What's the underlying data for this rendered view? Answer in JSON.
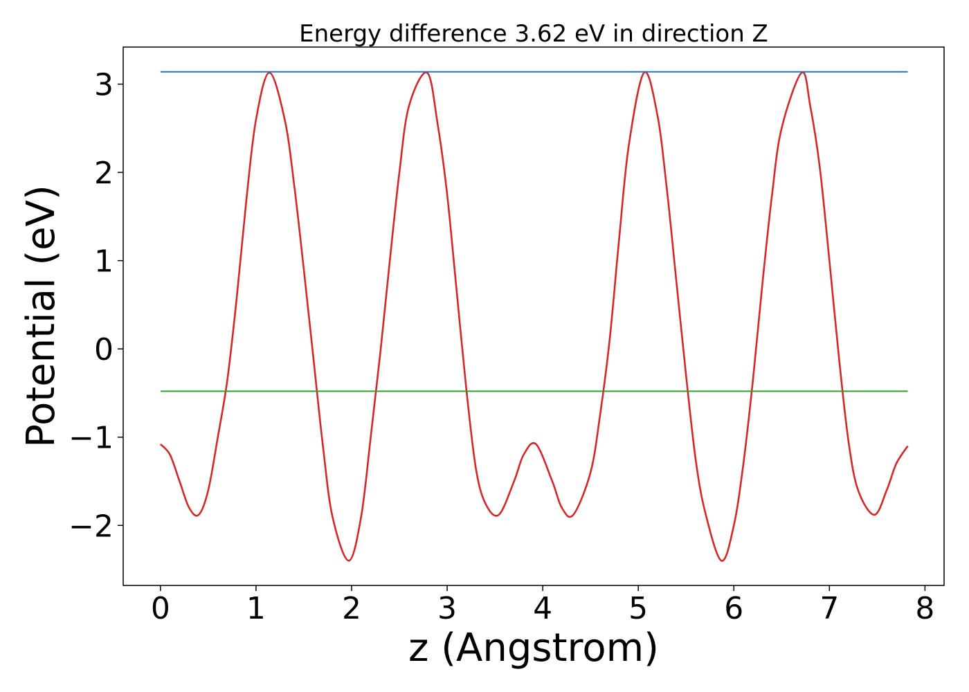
{
  "chart_data": {
    "type": "line",
    "title": "Energy difference 3.62 eV in direction Z",
    "xlabel": "z (Angstrom)",
    "ylabel": "Potential (eV)",
    "xlim": [
      -0.39,
      8.2
    ],
    "ylim": [
      -2.68,
      3.42
    ],
    "xticks": [
      0,
      1,
      2,
      3,
      4,
      5,
      6,
      7,
      8
    ],
    "xtick_labels": [
      "0",
      "1",
      "2",
      "3",
      "4",
      "5",
      "6",
      "7",
      "8"
    ],
    "yticks": [
      -2,
      -1,
      0,
      1,
      2,
      3
    ],
    "ytick_labels": [
      "−2",
      "−1",
      "0",
      "1",
      "2",
      "3"
    ],
    "grid": false,
    "legend": "none",
    "series": [
      {
        "color": "#d62728",
        "style": "line",
        "x": [
          0.0,
          0.1,
          0.2,
          0.3,
          0.4,
          0.5,
          0.6,
          0.7,
          0.8,
          0.9,
          1.0,
          1.14,
          1.3,
          1.4,
          1.5,
          1.6,
          1.7,
          1.8,
          1.97,
          2.1,
          2.2,
          2.3,
          2.4,
          2.5,
          2.6,
          2.79,
          2.9,
          3.0,
          3.1,
          3.2,
          3.3,
          3.4,
          3.54,
          3.7,
          3.8,
          3.93,
          4.1,
          4.2,
          4.32,
          4.5,
          4.6,
          4.7,
          4.8,
          4.9,
          5.06,
          5.2,
          5.3,
          5.4,
          5.5,
          5.6,
          5.7,
          5.87,
          6.0,
          6.1,
          6.2,
          6.3,
          6.4,
          6.5,
          6.71,
          6.8,
          6.9,
          7.0,
          7.1,
          7.2,
          7.3,
          7.47,
          7.6,
          7.7,
          7.82
        ],
        "y": [
          -1.08,
          -1.2,
          -1.5,
          -1.8,
          -1.88,
          -1.6,
          -1.0,
          -0.35,
          0.6,
          1.7,
          2.6,
          3.13,
          2.6,
          1.85,
          0.9,
          -0.1,
          -1.1,
          -1.9,
          -2.4,
          -1.9,
          -1.0,
          -0.05,
          1.0,
          2.0,
          2.75,
          3.13,
          2.55,
          1.75,
          0.65,
          -0.45,
          -1.35,
          -1.75,
          -1.88,
          -1.5,
          -1.2,
          -1.08,
          -1.5,
          -1.8,
          -1.88,
          -1.4,
          -0.75,
          0.1,
          1.25,
          2.3,
          3.13,
          2.65,
          1.8,
          0.75,
          -0.3,
          -1.25,
          -1.85,
          -2.4,
          -2.0,
          -1.3,
          -0.35,
          0.75,
          1.75,
          2.5,
          3.13,
          2.75,
          2.05,
          1.0,
          -0.1,
          -1.05,
          -1.6,
          -1.88,
          -1.6,
          -1.3,
          -1.1
        ]
      },
      {
        "color": "#1f77b4",
        "style": "hline",
        "x": [
          0.0,
          7.82
        ],
        "y": [
          3.14,
          3.14
        ]
      },
      {
        "color": "#2ca02c",
        "style": "hline",
        "x": [
          0.0,
          7.82
        ],
        "y": [
          -0.48,
          -0.48
        ]
      }
    ]
  }
}
